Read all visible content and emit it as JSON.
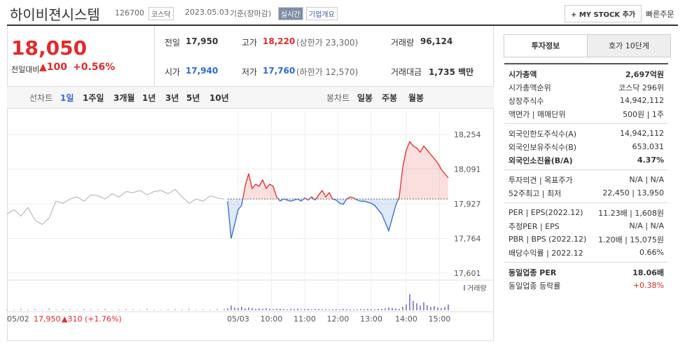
{
  "header": {
    "name": "하이비젼시스템",
    "code": "126700",
    "market": "코스닥",
    "date": "2023.05.03",
    "basis": "기준(장마감)",
    "realtime": "실시간",
    "overview": "기업개요",
    "mystock": "+ MY STOCK 추가",
    "quick": "빠른주문"
  },
  "quote": {
    "price": "18,050",
    "change_label": "전일대비",
    "change": "▲100",
    "rate": "+0.56%",
    "cells": [
      [
        "전일",
        "17,950",
        ""
      ],
      [
        "고가",
        "18,220",
        "(상한가 23,300)"
      ],
      [
        "거래량",
        "96,124",
        ""
      ],
      [
        "시가",
        "17,940",
        ""
      ],
      [
        "저가",
        "17,760",
        "(하한가 12,570)"
      ],
      [
        "거래대금",
        "1,735 백만",
        ""
      ]
    ]
  },
  "tabs": {
    "line_label": "선차트",
    "line": [
      "1일",
      "1주일",
      "3개월",
      "1년",
      "3년",
      "5년",
      "10년"
    ],
    "candle_label": "봉차트",
    "candle": [
      "일봉",
      "주봉",
      "월봉"
    ]
  },
  "chart_data": {
    "type": "line",
    "xlim": [
      0,
      126
    ],
    "ylim": [
      17601,
      18254
    ],
    "yticks": [
      {
        "value": 18254,
        "label": "18,254"
      },
      {
        "value": 18091,
        "label": "18,091"
      },
      {
        "value": 17927,
        "label": "17,927"
      },
      {
        "value": 17764,
        "label": "17,764"
      },
      {
        "value": 17601,
        "label": "17,601"
      }
    ],
    "xticks": [
      {
        "value": 66,
        "label": "05/03"
      },
      {
        "value": 75.5,
        "label": "10:00"
      },
      {
        "value": 85,
        "label": "11:00"
      },
      {
        "value": 94.5,
        "label": "12:00"
      },
      {
        "value": 104,
        "label": "13:00"
      },
      {
        "value": 114,
        "label": "14:00"
      },
      {
        "value": 123.5,
        "label": "15:00"
      }
    ],
    "baseline": 17950,
    "down_color": "#2d6bd0",
    "grid": true,
    "volume_name": "거래량",
    "vlim": [
      0,
      100
    ],
    "series": [
      {
        "color": "#bbbbbb",
        "volume_color": "#cccccc",
        "x": [
          0,
          2,
          4,
          6,
          8,
          10,
          12,
          14,
          16,
          18,
          20,
          22,
          24,
          26,
          28,
          30,
          32,
          34,
          36,
          38,
          40,
          42,
          44,
          46,
          48,
          50,
          52,
          54,
          56,
          58,
          60,
          62
        ],
        "values": [
          17880,
          17900,
          17870,
          17910,
          17850,
          17830,
          17860,
          17940,
          17930,
          17950,
          17960,
          17940,
          17970,
          17965,
          17950,
          17975,
          17960,
          17985,
          17980,
          17990,
          17970,
          17985,
          17990,
          17975,
          17995,
          17960,
          17930,
          17950,
          17940,
          17965,
          17955,
          17950
        ],
        "volume": [
          5,
          3,
          8,
          4,
          6,
          3,
          10,
          4,
          7,
          5,
          3,
          6,
          4,
          5,
          8,
          3,
          4,
          6,
          5,
          3,
          7,
          4,
          3,
          5,
          6,
          4,
          8,
          3,
          5,
          4,
          6,
          9
        ]
      },
      {
        "color": "#e22a2a",
        "volume_color": "#9b87d0",
        "x": [
          63,
          64,
          65,
          66,
          67,
          68,
          69,
          70,
          71,
          72,
          73,
          74,
          75,
          76,
          77,
          78,
          79,
          80,
          81,
          82,
          83,
          84,
          85,
          86,
          87,
          88,
          89,
          90,
          91,
          92,
          93,
          94,
          95,
          96,
          97,
          98,
          99,
          100,
          101,
          102,
          103,
          104,
          105,
          106,
          107,
          108,
          109,
          110,
          111,
          112,
          113,
          114,
          115,
          116,
          117,
          118,
          119,
          120,
          121,
          122,
          123,
          124,
          125,
          126
        ],
        "values": [
          17940,
          17764,
          17830,
          17900,
          17920,
          18010,
          18070,
          18000,
          18020,
          18010,
          18040,
          18000,
          18020,
          18010,
          17960,
          17940,
          17950,
          17945,
          17940,
          17945,
          17950,
          17940,
          17955,
          17945,
          17960,
          17945,
          17970,
          17990,
          17960,
          17980,
          17950,
          17945,
          17930,
          17925,
          17950,
          17960,
          17955,
          17945,
          17940,
          17940,
          17935,
          17930,
          17920,
          17900,
          17880,
          17840,
          17800,
          17860,
          17920,
          17960,
          18100,
          18180,
          18220,
          18200,
          18190,
          18170,
          18200,
          18180,
          18160,
          18140,
          18120,
          18090,
          18070,
          18050
        ],
        "volume": [
          8,
          20,
          12,
          10,
          15,
          8,
          12,
          10,
          6,
          8,
          7,
          9,
          6,
          5,
          7,
          6,
          5,
          4,
          6,
          5,
          7,
          4,
          5,
          6,
          4,
          5,
          6,
          4,
          5,
          3,
          4,
          5,
          4,
          6,
          5,
          4,
          3,
          4,
          5,
          4,
          6,
          5,
          4,
          7,
          6,
          8,
          12,
          10,
          8,
          6,
          15,
          25,
          70,
          40,
          30,
          20,
          35,
          22,
          15,
          18,
          12,
          10,
          14,
          25
        ]
      }
    ],
    "note": {
      "date": "05/02",
      "price": "17,950",
      "change": "▲310 (+1.76%)"
    }
  },
  "side": {
    "tabs": [
      "투자정보",
      "호가 10단계"
    ],
    "sections": [
      [
        [
          "시가총액",
          "2,697억원"
        ],
        [
          "시가총액순위",
          "코스닥 296위"
        ],
        [
          "상장주식수",
          "14,942,112"
        ],
        [
          "액면가 | 매매단위",
          "500원 | 1주"
        ]
      ],
      [
        [
          "외국인한도주식수(A)",
          "14,942,112"
        ],
        [
          "외국인보유주식수(B)",
          "653,031"
        ],
        [
          "외국인소진율(B/A)",
          "4.37%"
        ]
      ],
      [
        [
          "투자의견 | 목표주가",
          "N/A | N/A"
        ],
        [
          "52주최고 | 최저",
          "22,450 | 13,950"
        ]
      ],
      [
        [
          "PER | EPS(2022.12)",
          "11.23배 | 1,608원"
        ],
        [
          "추정PER | EPS",
          "N/A | N/A"
        ],
        [
          "PBR | BPS (2022.12)",
          "1.20배 | 15,075원"
        ],
        [
          "배당수익률 | 2022.12",
          "0.66%"
        ]
      ],
      [
        [
          "동일업종 PER",
          "18.06배"
        ],
        [
          "동일업종 등락률",
          "+0.38%"
        ]
      ]
    ]
  }
}
